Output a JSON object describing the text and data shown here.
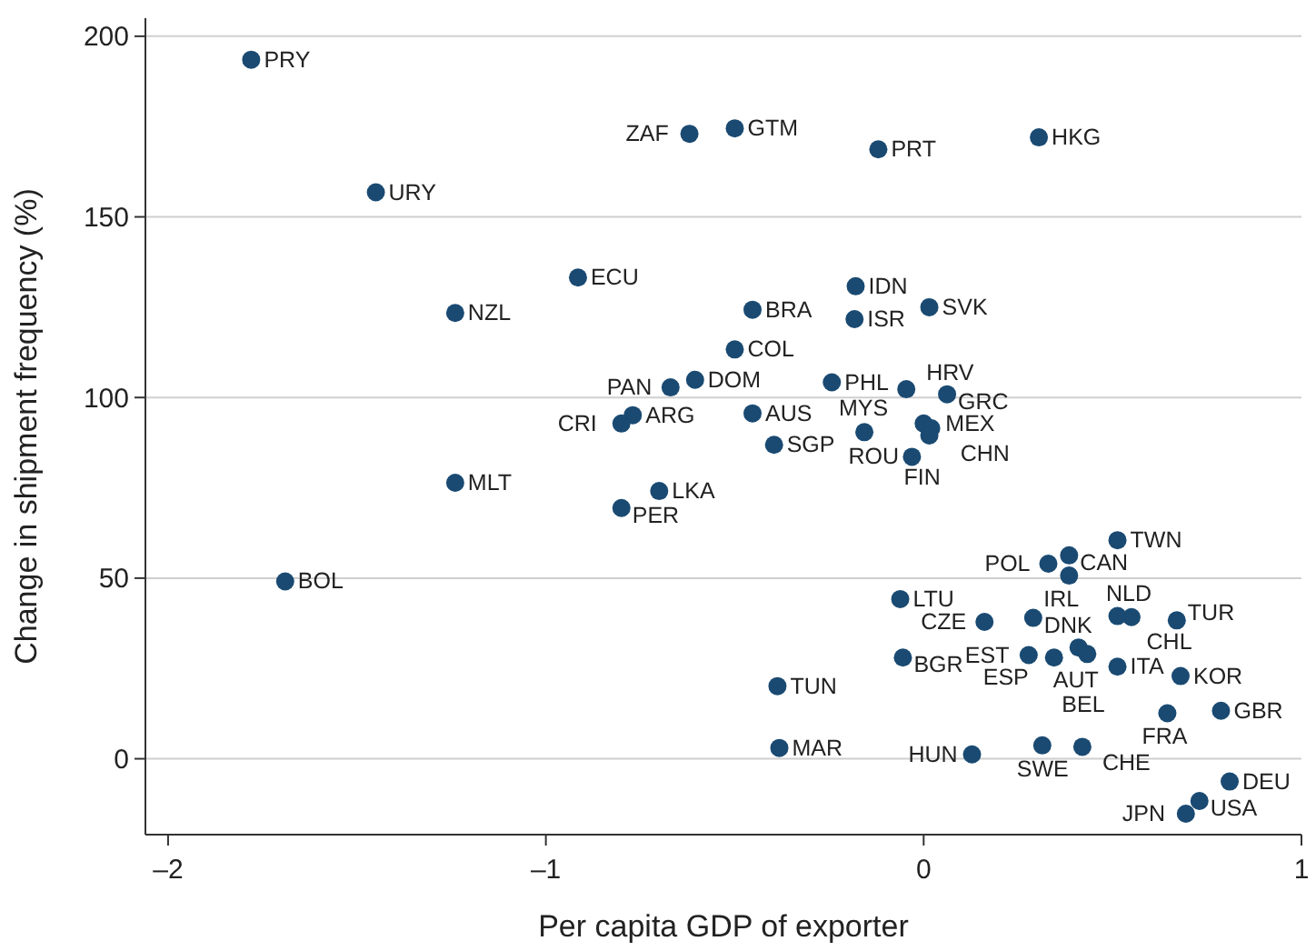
{
  "chart_data": {
    "type": "scatter",
    "xlabel": "Per capita GDP of exporter",
    "ylabel": "Change in shipment frequency (%)",
    "xlim": [
      -2.06,
      1.0
    ],
    "ylim": [
      -21,
      205
    ],
    "xticks": [
      {
        "value": -2,
        "label": "–2"
      },
      {
        "value": -1,
        "label": "–1"
      },
      0,
      1
    ],
    "yticks": [
      0,
      50,
      100,
      150,
      200
    ],
    "grid": "y",
    "marker": "circle",
    "series": [
      {
        "color": "#1a4a72",
        "x": [
          -1.78,
          -0.62,
          -0.5,
          -0.12,
          0.305,
          -1.45,
          -0.915,
          -1.24,
          -0.453,
          -0.18,
          -0.183,
          0.015,
          -0.5,
          -0.605,
          -0.67,
          -0.243,
          -0.046,
          0.062,
          -0.77,
          -0.8,
          -0.453,
          -0.396,
          -0.157,
          0,
          0.02,
          0.015,
          -0.031,
          -0.7,
          -0.8,
          -1.24,
          -1.69,
          0.513,
          0.385,
          0.33,
          0.385,
          -0.062,
          0.161,
          0.29,
          0.513,
          0.55,
          0.67,
          0.41,
          0.433,
          0.345,
          0.278,
          0.513,
          0.68,
          0.645,
          0.787,
          -0.055,
          -0.387,
          -0.382,
          0.128,
          0.314,
          0.42,
          0.81,
          0.73,
          0.694
        ],
        "values": [
          193.5,
          173,
          174.5,
          168.7,
          172,
          156.8,
          133.2,
          123.4,
          124.3,
          130.8,
          121.7,
          125,
          113.3,
          104.9,
          102.8,
          104.2,
          102.3,
          100.9,
          95.1,
          92.8,
          95.6,
          86.9,
          90.4,
          92.8,
          91.5,
          89.5,
          83.6,
          74.1,
          69.4,
          76.4,
          49.1,
          60.5,
          56.3,
          54,
          50.7,
          44.2,
          37.9,
          39,
          39.5,
          39.2,
          38.3,
          30.8,
          29,
          28,
          28.7,
          25.5,
          22.9,
          12.6,
          13.3,
          28,
          20.1,
          3,
          1.2,
          3.7,
          3.3,
          -6.3,
          -11.7,
          -15.2
        ],
        "value_labels": [
          "PRY",
          "ZAF",
          "GTM",
          "PRT",
          "HKG",
          "URY",
          "ECU",
          "NZL",
          "BRA",
          "IDN",
          "ISR",
          "SVK",
          "COL",
          "DOM",
          "PAN",
          "PHL",
          "HRV",
          "GRC",
          "ARG",
          "CRI",
          "AUS",
          "SGP",
          "MYS",
          "MEX",
          "CHN",
          "FIN",
          "ROU",
          "LKA",
          "PER",
          "MLT",
          "BOL",
          "TWN",
          "CAN",
          "POL",
          "IRL",
          "LTU",
          "CZE",
          "DNK",
          "CHL",
          "NLD",
          "TUR",
          "AUT",
          "BEL",
          "ESP",
          "EST",
          "ITA",
          "KOR",
          "FRA",
          "GBR",
          "BGR",
          "TUN",
          "MAR",
          "HUN",
          "SWE",
          "CHE",
          "DEU",
          "USA",
          "JPN"
        ]
      }
    ]
  }
}
